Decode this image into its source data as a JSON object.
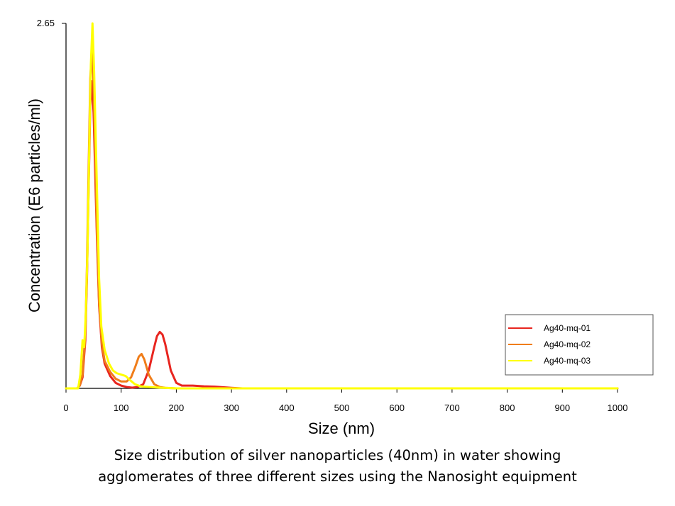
{
  "chart_data": {
    "type": "line",
    "title": "",
    "xlabel": "Size (nm)",
    "ylabel": "Concentration (E6 particles/ml)",
    "xlim": [
      0,
      1000
    ],
    "ylim": [
      0,
      2.65
    ],
    "x_ticks": [
      0,
      100,
      200,
      300,
      400,
      500,
      600,
      700,
      800,
      900,
      1000
    ],
    "y_ticks": [
      2.65
    ],
    "y_tick_labels": [
      "2.65"
    ],
    "grid": false,
    "legend_position": "bottom-right",
    "series": [
      {
        "name": "Ag40-mq-01",
        "color": "#e8251f",
        "points": [
          [
            0,
            0
          ],
          [
            20,
            0
          ],
          [
            25,
            0.02
          ],
          [
            30,
            0.08
          ],
          [
            35,
            0.35
          ],
          [
            38,
            0.8
          ],
          [
            41,
            1.45
          ],
          [
            44,
            2.05
          ],
          [
            47,
            2.23
          ],
          [
            50,
            2.0
          ],
          [
            53,
            1.55
          ],
          [
            56,
            1.1
          ],
          [
            60,
            0.6
          ],
          [
            65,
            0.3
          ],
          [
            70,
            0.18
          ],
          [
            80,
            0.09
          ],
          [
            90,
            0.04
          ],
          [
            100,
            0.02
          ],
          [
            110,
            0.01
          ],
          [
            120,
            0.005
          ],
          [
            130,
            0.01
          ],
          [
            140,
            0.03
          ],
          [
            150,
            0.13
          ],
          [
            160,
            0.3
          ],
          [
            165,
            0.38
          ],
          [
            170,
            0.41
          ],
          [
            175,
            0.39
          ],
          [
            180,
            0.32
          ],
          [
            190,
            0.13
          ],
          [
            200,
            0.04
          ],
          [
            210,
            0.02
          ],
          [
            230,
            0.02
          ],
          [
            250,
            0.015
          ],
          [
            270,
            0.012
          ],
          [
            300,
            0.004
          ],
          [
            320,
            0
          ],
          [
            1000,
            0
          ]
        ]
      },
      {
        "name": "Ag40-mq-02",
        "color": "#f07d1a",
        "points": [
          [
            0,
            0
          ],
          [
            20,
            0
          ],
          [
            25,
            0.02
          ],
          [
            30,
            0.1
          ],
          [
            35,
            0.4
          ],
          [
            38,
            0.9
          ],
          [
            41,
            1.6
          ],
          [
            44,
            2.25
          ],
          [
            47,
            2.45
          ],
          [
            50,
            2.2
          ],
          [
            53,
            1.7
          ],
          [
            56,
            1.15
          ],
          [
            60,
            0.62
          ],
          [
            65,
            0.33
          ],
          [
            70,
            0.2
          ],
          [
            80,
            0.12
          ],
          [
            90,
            0.07
          ],
          [
            100,
            0.05
          ],
          [
            110,
            0.05
          ],
          [
            118,
            0.08
          ],
          [
            125,
            0.15
          ],
          [
            132,
            0.23
          ],
          [
            137,
            0.25
          ],
          [
            142,
            0.21
          ],
          [
            150,
            0.1
          ],
          [
            160,
            0.03
          ],
          [
            170,
            0.01
          ],
          [
            180,
            0.004
          ],
          [
            200,
            0
          ],
          [
            1000,
            0
          ]
        ]
      },
      {
        "name": "Ag40-mq-03",
        "color": "#ffff00",
        "points": [
          [
            0,
            0
          ],
          [
            22,
            0
          ],
          [
            26,
            0.1
          ],
          [
            30,
            0.35
          ],
          [
            33,
            0.3
          ],
          [
            36,
            0.55
          ],
          [
            39,
            1.0
          ],
          [
            42,
            1.7
          ],
          [
            45,
            2.35
          ],
          [
            48,
            2.65
          ],
          [
            51,
            2.3
          ],
          [
            54,
            1.8
          ],
          [
            57,
            1.3
          ],
          [
            60,
            0.8
          ],
          [
            64,
            0.45
          ],
          [
            70,
            0.28
          ],
          [
            78,
            0.18
          ],
          [
            85,
            0.13
          ],
          [
            92,
            0.11
          ],
          [
            100,
            0.1
          ],
          [
            108,
            0.09
          ],
          [
            116,
            0.06
          ],
          [
            125,
            0.03
          ],
          [
            135,
            0.015
          ],
          [
            150,
            0.01
          ],
          [
            170,
            0.005
          ],
          [
            200,
            0
          ],
          [
            1000,
            0
          ]
        ]
      }
    ]
  },
  "caption": {
    "line1": "Size distribution of silver nanoparticles (40nm) in water showing",
    "line2": "agglomerates of three different sizes using the Nanosight equipment"
  }
}
